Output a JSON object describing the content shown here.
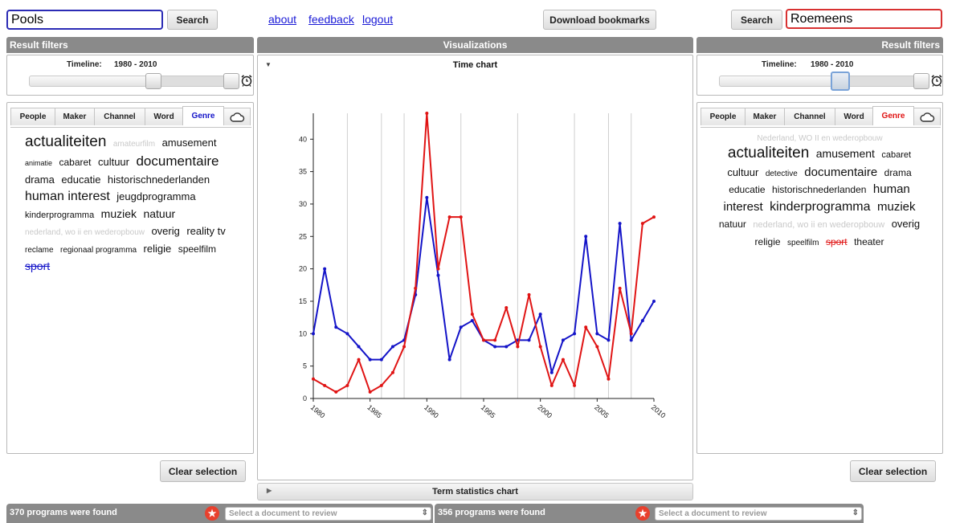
{
  "top": {
    "left_search_value": "Pools",
    "right_search_value": "Roemeens",
    "search_label": "Search",
    "links": [
      "about",
      "feedback",
      "logout"
    ],
    "download_label": "Download bookmarks"
  },
  "panels": {
    "result_filters": "Result filters",
    "visualizations": "Visualizations",
    "time_chart": "Time chart",
    "term_stats": "Term statistics chart"
  },
  "timeline": {
    "label": "Timeline:",
    "range": "1980 - 2010"
  },
  "tabs": [
    "People",
    "Maker",
    "Channel",
    "Word",
    "Genre"
  ],
  "left_cloud": [
    {
      "t": "actualiteiten",
      "s": 19,
      "dim": false
    },
    {
      "t": "amateurfilm",
      "s": 10,
      "dim": true
    },
    {
      "t": "amusement",
      "s": 13,
      "dim": false
    },
    {
      "t": "animatie",
      "s": 9,
      "dim": false
    },
    {
      "t": "cabaret",
      "s": 12,
      "dim": false
    },
    {
      "t": "cultuur",
      "s": 13,
      "dim": false
    },
    {
      "t": "documentaire",
      "s": 17,
      "dim": false
    },
    {
      "t": "drama",
      "s": 13,
      "dim": false
    },
    {
      "t": "educatie",
      "s": 13,
      "dim": false
    },
    {
      "t": "historischnederlanden",
      "s": 13,
      "dim": false
    },
    {
      "t": "human interest",
      "s": 16,
      "dim": false
    },
    {
      "t": "jeugdprogramma",
      "s": 13,
      "dim": false
    },
    {
      "t": "kinderprogramma",
      "s": 11,
      "dim": false
    },
    {
      "t": "muziek",
      "s": 14,
      "dim": false
    },
    {
      "t": "natuur",
      "s": 14,
      "dim": false
    },
    {
      "t": "nederland, wo ii en wederopbouw",
      "s": 10,
      "dim": true
    },
    {
      "t": "overig",
      "s": 13,
      "dim": false
    },
    {
      "t": "reality tv",
      "s": 13,
      "dim": false
    },
    {
      "t": "reclame",
      "s": 10,
      "dim": false
    },
    {
      "t": "regionaal programma",
      "s": 10,
      "dim": false
    },
    {
      "t": "religie",
      "s": 13,
      "dim": false
    },
    {
      "t": "speelfilm",
      "s": 12,
      "dim": false
    },
    {
      "t": "sport",
      "s": 14,
      "dim": false,
      "sel": true
    }
  ],
  "right_cloud_note": "Nederland, WO II en wederopbouw",
  "right_cloud": [
    {
      "t": "actualiteiten",
      "s": 19,
      "dim": false
    },
    {
      "t": "amusement",
      "s": 14,
      "dim": false
    },
    {
      "t": "cabaret",
      "s": 11,
      "dim": false
    },
    {
      "t": "cultuur",
      "s": 13,
      "dim": false
    },
    {
      "t": "detective",
      "s": 10,
      "dim": false
    },
    {
      "t": "documentaire",
      "s": 15,
      "dim": false
    },
    {
      "t": "drama",
      "s": 12,
      "dim": false
    },
    {
      "t": "educatie",
      "s": 12,
      "dim": false
    },
    {
      "t": "historischnederlanden",
      "s": 12,
      "dim": false
    },
    {
      "t": "human",
      "s": 15,
      "dim": false
    },
    {
      "t": "interest",
      "s": 15,
      "dim": false
    },
    {
      "t": "kinderprogramma",
      "s": 16,
      "dim": false
    },
    {
      "t": "muziek",
      "s": 15,
      "dim": false
    },
    {
      "t": "natuur",
      "s": 12,
      "dim": false
    },
    {
      "t": "nederland, wo ii en wederopbouw",
      "s": 11,
      "dim": true
    },
    {
      "t": "overig",
      "s": 13,
      "dim": false
    },
    {
      "t": "religie",
      "s": 12,
      "dim": false
    },
    {
      "t": "speelfilm",
      "s": 10,
      "dim": false
    },
    {
      "t": "sport",
      "s": 12,
      "dim": false,
      "sel": true
    },
    {
      "t": "theater",
      "s": 12,
      "dim": false
    }
  ],
  "clear_label": "Clear selection",
  "footer": {
    "left_count": "370 programs were found",
    "right_count": "356 programs were found",
    "select_placeholder": "Select a document to review"
  },
  "colors": {
    "left_series": "#1414c8",
    "right_series": "#e01414",
    "header_gray": "#8a8a8a"
  },
  "chart_data": {
    "type": "line",
    "title": "Time chart",
    "x": [
      1980,
      1981,
      1982,
      1983,
      1984,
      1985,
      1986,
      1987,
      1988,
      1989,
      1990,
      1991,
      1992,
      1993,
      1994,
      1995,
      1996,
      1997,
      1998,
      1999,
      2000,
      2001,
      2002,
      2003,
      2004,
      2005,
      2006,
      2007,
      2008,
      2009,
      2010
    ],
    "xticks": [
      "1980",
      "1985",
      "1990",
      "1995",
      "2000",
      "2005",
      "2010"
    ],
    "yticks": [
      "0",
      "5",
      "10",
      "15",
      "20",
      "25",
      "30",
      "35",
      "40"
    ],
    "ylim": [
      0,
      44
    ],
    "series": [
      {
        "color": "#1414c8",
        "values": [
          10,
          20,
          11,
          10,
          8,
          6,
          6,
          8,
          9,
          16,
          31,
          19,
          6,
          11,
          12,
          9,
          8,
          8,
          9,
          9,
          13,
          4,
          9,
          10,
          25,
          10,
          9,
          27,
          9,
          12,
          15
        ]
      },
      {
        "color": "#e01414",
        "values": [
          3,
          2,
          1,
          2,
          6,
          1,
          2,
          4,
          8,
          17,
          44,
          20,
          28,
          28,
          13,
          9,
          9,
          14,
          8,
          16,
          8,
          2,
          6,
          2,
          11,
          8,
          3,
          17,
          10,
          27,
          28
        ]
      }
    ]
  }
}
